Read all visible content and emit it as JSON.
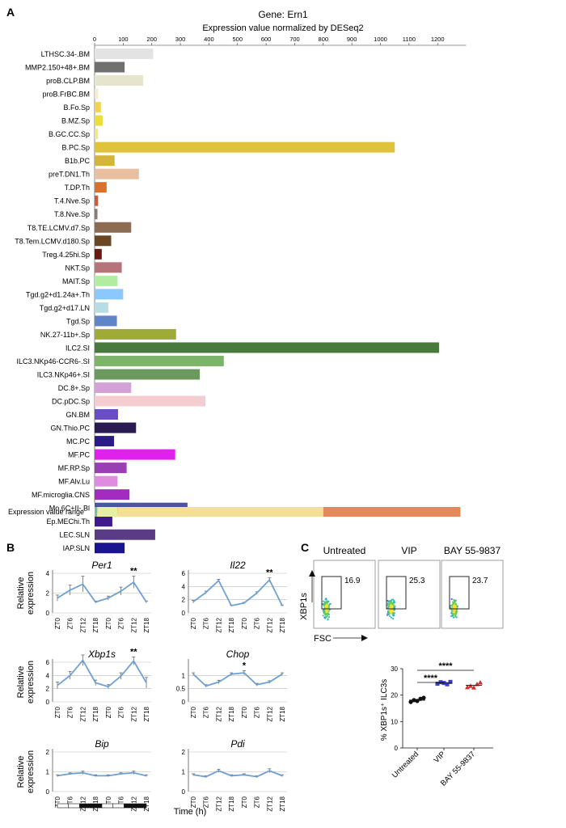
{
  "panel_labels": {
    "a": "A",
    "b": "B",
    "c": "C"
  },
  "chart_data": [
    {
      "id": "A",
      "type": "bar",
      "orientation": "horizontal",
      "title": "Gene: Ern1",
      "xlabel": "Expression value normalized by DESeq2",
      "xlim": [
        0,
        1300
      ],
      "xticks": [
        0,
        100,
        200,
        300,
        400,
        500,
        600,
        700,
        800,
        900,
        1000,
        1100,
        1200
      ],
      "categories": [
        "LTHSC.34-.BM",
        "MMP2.150+48+.BM",
        "proB.CLP.BM",
        "proB.FrBC.BM",
        "B.Fo.Sp",
        "B.MZ.Sp",
        "B.GC.CC.Sp",
        "B.PC.Sp",
        "B1b.PC",
        "preT.DN1.Th",
        "T.DP.Th",
        "T.4.Nve.Sp",
        "T.8.Nve.Sp",
        "T8.TE.LCMV.d7.Sp",
        "T8.Tem.LCMV.d180.Sp",
        "Treg.4.25hi.Sp",
        "NKT.Sp",
        "MAIT.Sp",
        "Tgd.g2+d1.24a+.Th",
        "Tgd.g2+d17.LN",
        "Tgd.Sp",
        "NK.27-11b+.Sp",
        "ILC2.SI",
        "ILC3.NKp46-CCR6-.SI",
        "ILC3.NKp46+.SI",
        "DC.8+.Sp",
        "DC.pDC.Sp",
        "GN.BM",
        "GN.Thio.PC",
        "MC.PC",
        "MF.PC",
        "MF.RP.Sp",
        "MF.Alv.Lu",
        "MF.microglia.CNS",
        "Mo.6C+II-.Bl",
        "Ep.MEChi.Th",
        "LEC.SLN",
        "IAP.SLN"
      ],
      "values": [
        205,
        105,
        170,
        12,
        22,
        28,
        12,
        1050,
        70,
        155,
        42,
        12,
        10,
        128,
        58,
        25,
        95,
        80,
        100,
        48,
        78,
        285,
        1205,
        452,
        368,
        128,
        388,
        82,
        145,
        68,
        282,
        112,
        80,
        122,
        325,
        62,
        212,
        105
      ],
      "colors": [
        "#e3e3e3",
        "#707070",
        "#e5e5cd",
        "#f2ecd0",
        "#f2d34e",
        "#ecde3a",
        "#f0e39a",
        "#e0c33a",
        "#d4b53c",
        "#e8c0a0",
        "#d9712c",
        "#c95a3c",
        "#8d7a6e",
        "#8e6b53",
        "#6b4524",
        "#6a1b0f",
        "#b5737a",
        "#b2eca0",
        "#8cc8ff",
        "#b7dde4",
        "#5f84c8",
        "#9eab36",
        "#477a3c",
        "#7cb46a",
        "#6c9a5e",
        "#d4a2d8",
        "#f3cdd0",
        "#6a4cc6",
        "#2a1a52",
        "#2a1a8a",
        "#e020ec",
        "#9a3eb4",
        "#e08ae0",
        "#a22cc0",
        "#4a54a0",
        "#3e1a8e",
        "#5a3c84",
        "#1a1490"
      ],
      "range_legend": {
        "label": "Expression value range",
        "segments": [
          {
            "from": 0,
            "to": 4,
            "color": "#7fb8d8"
          },
          {
            "from": 4,
            "to": 9,
            "color": "#7cc27c"
          },
          {
            "from": 9,
            "to": 80,
            "color": "#e6f0a0"
          },
          {
            "from": 80,
            "to": 800,
            "color": "#f5df94"
          },
          {
            "from": 800,
            "to": 1280,
            "color": "#e6895a"
          }
        ]
      }
    },
    {
      "id": "B",
      "type": "line",
      "x": [
        "ZT0",
        "ZT6",
        "ZT12",
        "ZT18",
        "ZT0",
        "ZT6",
        "ZT12",
        "ZT18"
      ],
      "ylabel": "Relative expression",
      "xlabel": "Time (h)",
      "light_dark_bar": [
        "light",
        "light",
        "dark",
        "dark",
        "light",
        "light",
        "dark",
        "dark"
      ],
      "subplots": [
        {
          "title": "Per1",
          "ylim": [
            0,
            4
          ],
          "yticks": [
            0,
            2,
            4
          ],
          "values": [
            1.5,
            2.3,
            2.9,
            1.1,
            1.5,
            2.2,
            3.1,
            1.1
          ],
          "errors": [
            0.3,
            0.5,
            0.8,
            0.1,
            0.2,
            0.4,
            0.6,
            0.1
          ],
          "annotation": {
            "index": 6,
            "text": "**"
          }
        },
        {
          "title": "Il22",
          "ylim": [
            0,
            6
          ],
          "yticks": [
            0,
            2,
            4,
            6
          ],
          "values": [
            1.7,
            3.1,
            4.9,
            1.1,
            1.5,
            3.0,
            5.0,
            1.1
          ],
          "errors": [
            0.2,
            0.2,
            0.2,
            0.1,
            0.1,
            0.2,
            0.3,
            0.1
          ],
          "annotation": {
            "index": 6,
            "text": "**"
          }
        },
        {
          "title": "Xbp1s",
          "ylim": [
            0,
            6
          ],
          "yticks": [
            0,
            2,
            4,
            6
          ],
          "values": [
            2.5,
            4.0,
            6.3,
            2.9,
            2.3,
            3.9,
            6.2,
            2.9
          ],
          "errors": [
            0.5,
            0.6,
            0.8,
            0.4,
            0.3,
            0.5,
            0.6,
            0.8
          ],
          "annotation": {
            "index": 6,
            "text": "**"
          }
        },
        {
          "title": "Chop",
          "ylim": [
            0,
            1.5
          ],
          "yticks": [
            0,
            0.5,
            1
          ],
          "values": [
            1.05,
            0.6,
            0.75,
            1.05,
            1.1,
            0.65,
            0.75,
            1.05
          ],
          "errors": [
            0.05,
            0.05,
            0.07,
            0.05,
            0.08,
            0.05,
            0.05,
            0.05
          ],
          "annotation": {
            "index": 4,
            "text": "*"
          }
        },
        {
          "title": "Bip",
          "ylim": [
            0,
            2
          ],
          "yticks": [
            0,
            1,
            2
          ],
          "values": [
            0.8,
            0.9,
            0.95,
            0.8,
            0.8,
            0.9,
            0.95,
            0.8
          ],
          "errors": [
            0.05,
            0.05,
            0.08,
            0.05,
            0.05,
            0.05,
            0.08,
            0.05
          ],
          "annotation": null
        },
        {
          "title": "Pdi",
          "ylim": [
            0,
            2
          ],
          "yticks": [
            0,
            1,
            2
          ],
          "values": [
            0.85,
            0.75,
            1.05,
            0.8,
            0.85,
            0.75,
            1.05,
            0.8
          ],
          "errors": [
            0.05,
            0.05,
            0.08,
            0.05,
            0.05,
            0.05,
            0.1,
            0.05
          ],
          "annotation": null
        }
      ]
    },
    {
      "id": "C-flow",
      "type": "scatter",
      "xlabel": "FSC",
      "ylabel": "XBP1s",
      "panels": [
        {
          "title": "Untreated",
          "gate_percent": "16.9"
        },
        {
          "title": "VIP",
          "gate_percent": "25.3"
        },
        {
          "title": "BAY 55-9837",
          "gate_percent": "23.7"
        }
      ]
    },
    {
      "id": "C-dot",
      "type": "scatter",
      "ylabel": "% XBP1s⁺ ILC3s",
      "ylim": [
        0,
        30
      ],
      "yticks": [
        0,
        10,
        20,
        30
      ],
      "categories": [
        "Untreated",
        "VIP",
        "BAY 55-9837"
      ],
      "colors": [
        "#111111",
        "#3b3bdc",
        "#d03030"
      ],
      "markers": [
        "circle",
        "square",
        "triangle"
      ],
      "points": [
        [
          17.4,
          18.1,
          17.8,
          18.6,
          19.0
        ],
        [
          24.3,
          24.9,
          24.6,
          24.1,
          25.0
        ],
        [
          23.0,
          23.5,
          22.9,
          24.2,
          24.8
        ]
      ],
      "means": [
        18.1,
        24.6,
        23.7
      ],
      "significance": [
        {
          "from": 0,
          "to": 1,
          "text": "****"
        },
        {
          "from": 0,
          "to": 2,
          "text": "****"
        }
      ]
    }
  ]
}
